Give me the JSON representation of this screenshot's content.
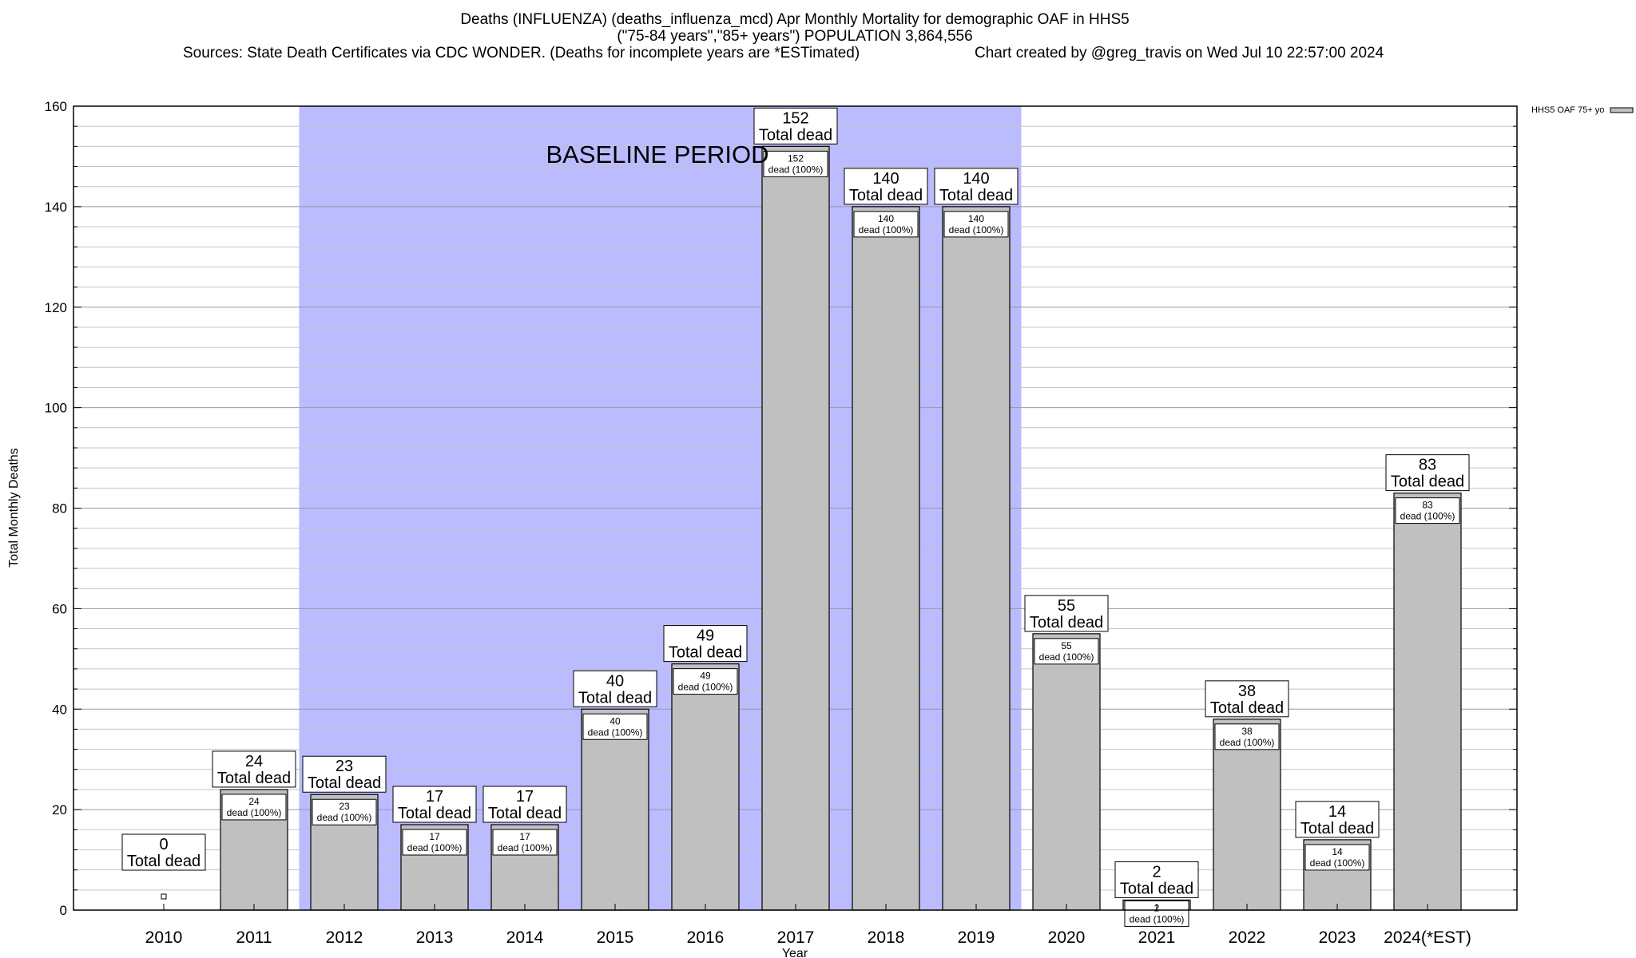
{
  "chart_data": {
    "type": "bar",
    "title_lines": [
      "Deaths (INFLUENZA) (deaths_influenza_mcd) Apr Monthly Mortality for demographic OAF in HHS5",
      "(\"75-84 years\",\"85+ years\") POPULATION 3,864,556",
      "Sources: State Death Certificates via CDC WONDER. (Deaths for incomplete years are *ESTimated)",
      "Chart created by @greg_travis on Wed Jul 10 22:57:00 2024"
    ],
    "xlabel": "Year",
    "ylabel": "Total Monthly Deaths",
    "ylim": [
      0,
      160
    ],
    "ytick_major": [
      0,
      20,
      40,
      60,
      80,
      100,
      120,
      140,
      160
    ],
    "grid": true,
    "legend": {
      "label": "HHS5 OAF 75+ yo",
      "placement": "top-right"
    },
    "categories": [
      "2010",
      "2011",
      "2012",
      "2013",
      "2014",
      "2015",
      "2016",
      "2017",
      "2018",
      "2019",
      "2020",
      "2021",
      "2022",
      "2023",
      "2024(*EST)"
    ],
    "series": [
      {
        "name": "HHS5 OAF 75+ yo",
        "values": [
          0,
          24,
          23,
          17,
          17,
          40,
          49,
          152,
          140,
          140,
          55,
          2,
          38,
          14,
          83
        ]
      }
    ],
    "total_label": "Total dead",
    "inner_label": "dead (100%)",
    "baseline": {
      "label": "BASELINE PERIOD",
      "start": "2012",
      "end": "2019"
    },
    "colors": {
      "bar": "#c0c0c0",
      "baseline": "#bbbbff",
      "grid": "#a8a8a8"
    }
  }
}
